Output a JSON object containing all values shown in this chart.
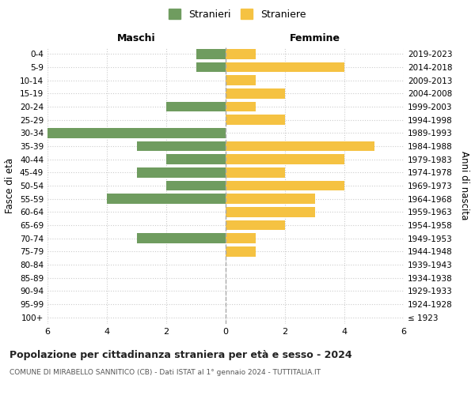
{
  "age_groups": [
    "100+",
    "95-99",
    "90-94",
    "85-89",
    "80-84",
    "75-79",
    "70-74",
    "65-69",
    "60-64",
    "55-59",
    "50-54",
    "45-49",
    "40-44",
    "35-39",
    "30-34",
    "25-29",
    "20-24",
    "15-19",
    "10-14",
    "5-9",
    "0-4"
  ],
  "birth_years": [
    "≤ 1923",
    "1924-1928",
    "1929-1933",
    "1934-1938",
    "1939-1943",
    "1944-1948",
    "1949-1953",
    "1954-1958",
    "1959-1963",
    "1964-1968",
    "1969-1973",
    "1974-1978",
    "1979-1983",
    "1984-1988",
    "1989-1993",
    "1994-1998",
    "1999-2003",
    "2004-2008",
    "2009-2013",
    "2014-2018",
    "2019-2023"
  ],
  "males": [
    0,
    0,
    0,
    0,
    0,
    0,
    3,
    0,
    0,
    4,
    2,
    3,
    2,
    3,
    6,
    0,
    2,
    0,
    0,
    1,
    1
  ],
  "females": [
    0,
    0,
    0,
    0,
    0,
    1,
    1,
    2,
    3,
    3,
    4,
    2,
    4,
    5,
    0,
    2,
    1,
    2,
    1,
    4,
    1
  ],
  "male_color": "#6f9c5f",
  "female_color": "#f5c242",
  "xlim": 6,
  "title": "Popolazione per cittadinanza straniera per età e sesso - 2024",
  "subtitle": "COMUNE DI MIRABELLO SANNITICO (CB) - Dati ISTAT al 1° gennaio 2024 - TUTTITALIA.IT",
  "ylabel_left": "Fasce di età",
  "ylabel_right": "Anni di nascita",
  "header_left": "Maschi",
  "header_right": "Femmine",
  "legend_male": "Stranieri",
  "legend_female": "Straniere",
  "bg_color": "#ffffff",
  "grid_color": "#cccccc",
  "bar_height": 0.75
}
